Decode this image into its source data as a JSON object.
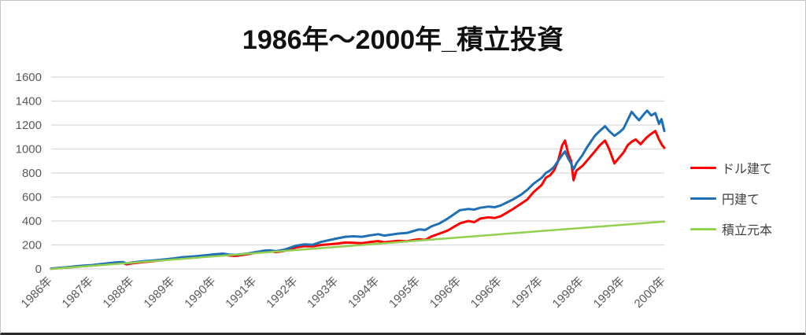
{
  "chart_data": {
    "type": "line",
    "title": "1986年〜2000年_積立投資",
    "x_tick_labels": [
      "1986年",
      "1987年",
      "1988年",
      "1989年",
      "1990年",
      "1991年",
      "1992年",
      "1993年",
      "1994年",
      "1995年",
      "1996年",
      "1996年",
      "1997年",
      "1998年",
      "1999年",
      "2000年"
    ],
    "y_ticks": [
      0,
      200,
      400,
      600,
      800,
      1000,
      1200,
      1400,
      1600
    ],
    "ylim": [
      0,
      1600
    ],
    "grid": "horizontal",
    "legend_position": "right",
    "axis_label_color": "#595959",
    "gridline_color": "#D9D9D9",
    "series": [
      {
        "name": "ドル建て",
        "color": "#FF0000",
        "points": [
          [
            0,
            2
          ],
          [
            0.2,
            7
          ],
          [
            0.4,
            12
          ],
          [
            0.6,
            18
          ],
          [
            0.8,
            25
          ],
          [
            1,
            28
          ],
          [
            1.2,
            34
          ],
          [
            1.4,
            42
          ],
          [
            1.6,
            48
          ],
          [
            1.75,
            52
          ],
          [
            1.85,
            38
          ],
          [
            2,
            48
          ],
          [
            2.2,
            55
          ],
          [
            2.5,
            65
          ],
          [
            2.8,
            76
          ],
          [
            3,
            85
          ],
          [
            3.2,
            95
          ],
          [
            3.5,
            102
          ],
          [
            3.8,
            110
          ],
          [
            4,
            115
          ],
          [
            4.2,
            120
          ],
          [
            4.35,
            112
          ],
          [
            4.5,
            108
          ],
          [
            4.65,
            115
          ],
          [
            4.8,
            122
          ],
          [
            5,
            135
          ],
          [
            5.2,
            145
          ],
          [
            5.35,
            148
          ],
          [
            5.5,
            140
          ],
          [
            5.7,
            150
          ],
          [
            5.85,
            165
          ],
          [
            6,
            180
          ],
          [
            6.2,
            190
          ],
          [
            6.4,
            188
          ],
          [
            6.6,
            200
          ],
          [
            6.8,
            205
          ],
          [
            7,
            212
          ],
          [
            7.2,
            220
          ],
          [
            7.4,
            218
          ],
          [
            7.6,
            215
          ],
          [
            7.8,
            225
          ],
          [
            8,
            232
          ],
          [
            8.15,
            222
          ],
          [
            8.3,
            228
          ],
          [
            8.5,
            235
          ],
          [
            8.7,
            230
          ],
          [
            8.85,
            240
          ],
          [
            9,
            248
          ],
          [
            9.15,
            242
          ],
          [
            9.3,
            270
          ],
          [
            9.5,
            295
          ],
          [
            9.7,
            320
          ],
          [
            9.85,
            350
          ],
          [
            10,
            380
          ],
          [
            10.2,
            400
          ],
          [
            10.35,
            390
          ],
          [
            10.5,
            420
          ],
          [
            10.7,
            430
          ],
          [
            10.85,
            425
          ],
          [
            11,
            440
          ],
          [
            11.15,
            470
          ],
          [
            11.3,
            500
          ],
          [
            11.5,
            545
          ],
          [
            11.65,
            580
          ],
          [
            11.8,
            640
          ],
          [
            12,
            700
          ],
          [
            12.1,
            760
          ],
          [
            12.2,
            780
          ],
          [
            12.3,
            820
          ],
          [
            12.4,
            900
          ],
          [
            12.5,
            1030
          ],
          [
            12.57,
            1070
          ],
          [
            12.65,
            960
          ],
          [
            12.72,
            900
          ],
          [
            12.78,
            740
          ],
          [
            12.85,
            820
          ],
          [
            13,
            860
          ],
          [
            13.1,
            900
          ],
          [
            13.2,
            940
          ],
          [
            13.3,
            980
          ],
          [
            13.42,
            1030
          ],
          [
            13.55,
            1070
          ],
          [
            13.65,
            1000
          ],
          [
            13.78,
            880
          ],
          [
            13.9,
            930
          ],
          [
            14,
            970
          ],
          [
            14.1,
            1030
          ],
          [
            14.2,
            1060
          ],
          [
            14.3,
            1080
          ],
          [
            14.42,
            1040
          ],
          [
            14.55,
            1090
          ],
          [
            14.65,
            1120
          ],
          [
            14.78,
            1150
          ],
          [
            14.87,
            1080
          ],
          [
            14.95,
            1030
          ],
          [
            15,
            1010
          ]
        ]
      },
      {
        "name": "円建て",
        "color": "#1F6FB5",
        "points": [
          [
            0,
            3
          ],
          [
            0.2,
            9
          ],
          [
            0.4,
            15
          ],
          [
            0.6,
            22
          ],
          [
            0.8,
            28
          ],
          [
            1,
            32
          ],
          [
            1.2,
            40
          ],
          [
            1.4,
            48
          ],
          [
            1.6,
            55
          ],
          [
            1.75,
            58
          ],
          [
            1.85,
            46
          ],
          [
            2,
            55
          ],
          [
            2.2,
            62
          ],
          [
            2.5,
            70
          ],
          [
            2.8,
            80
          ],
          [
            3,
            88
          ],
          [
            3.2,
            98
          ],
          [
            3.5,
            105
          ],
          [
            3.8,
            115
          ],
          [
            4,
            122
          ],
          [
            4.2,
            128
          ],
          [
            4.35,
            120
          ],
          [
            4.5,
            118
          ],
          [
            4.65,
            122
          ],
          [
            4.8,
            128
          ],
          [
            5,
            140
          ],
          [
            5.2,
            152
          ],
          [
            5.35,
            155
          ],
          [
            5.5,
            148
          ],
          [
            5.7,
            160
          ],
          [
            5.85,
            178
          ],
          [
            6,
            195
          ],
          [
            6.2,
            205
          ],
          [
            6.4,
            202
          ],
          [
            6.6,
            225
          ],
          [
            6.8,
            240
          ],
          [
            7,
            255
          ],
          [
            7.2,
            268
          ],
          [
            7.4,
            272
          ],
          [
            7.6,
            268
          ],
          [
            7.8,
            280
          ],
          [
            8,
            290
          ],
          [
            8.15,
            278
          ],
          [
            8.3,
            285
          ],
          [
            8.5,
            295
          ],
          [
            8.7,
            300
          ],
          [
            8.85,
            315
          ],
          [
            9,
            330
          ],
          [
            9.15,
            325
          ],
          [
            9.3,
            355
          ],
          [
            9.5,
            380
          ],
          [
            9.7,
            420
          ],
          [
            9.85,
            455
          ],
          [
            10,
            490
          ],
          [
            10.2,
            500
          ],
          [
            10.35,
            495
          ],
          [
            10.5,
            510
          ],
          [
            10.7,
            520
          ],
          [
            10.85,
            515
          ],
          [
            11,
            530
          ],
          [
            11.15,
            555
          ],
          [
            11.3,
            580
          ],
          [
            11.5,
            620
          ],
          [
            11.65,
            660
          ],
          [
            11.8,
            710
          ],
          [
            12,
            760
          ],
          [
            12.1,
            800
          ],
          [
            12.2,
            820
          ],
          [
            12.3,
            850
          ],
          [
            12.4,
            900
          ],
          [
            12.5,
            950
          ],
          [
            12.57,
            980
          ],
          [
            12.65,
            920
          ],
          [
            12.72,
            880
          ],
          [
            12.78,
            830
          ],
          [
            12.85,
            880
          ],
          [
            13,
            950
          ],
          [
            13.1,
            1010
          ],
          [
            13.2,
            1060
          ],
          [
            13.3,
            1110
          ],
          [
            13.42,
            1150
          ],
          [
            13.55,
            1190
          ],
          [
            13.65,
            1150
          ],
          [
            13.78,
            1110
          ],
          [
            13.9,
            1140
          ],
          [
            14,
            1170
          ],
          [
            14.1,
            1240
          ],
          [
            14.2,
            1310
          ],
          [
            14.3,
            1270
          ],
          [
            14.38,
            1240
          ],
          [
            14.5,
            1290
          ],
          [
            14.58,
            1320
          ],
          [
            14.68,
            1280
          ],
          [
            14.78,
            1300
          ],
          [
            14.87,
            1210
          ],
          [
            14.93,
            1250
          ],
          [
            15,
            1150
          ]
        ]
      },
      {
        "name": "積立元本",
        "color": "#92D050",
        "points": [
          [
            0,
            0
          ],
          [
            3,
            79
          ],
          [
            6,
            158
          ],
          [
            9,
            237
          ],
          [
            12,
            316
          ],
          [
            15,
            395
          ]
        ]
      }
    ]
  }
}
